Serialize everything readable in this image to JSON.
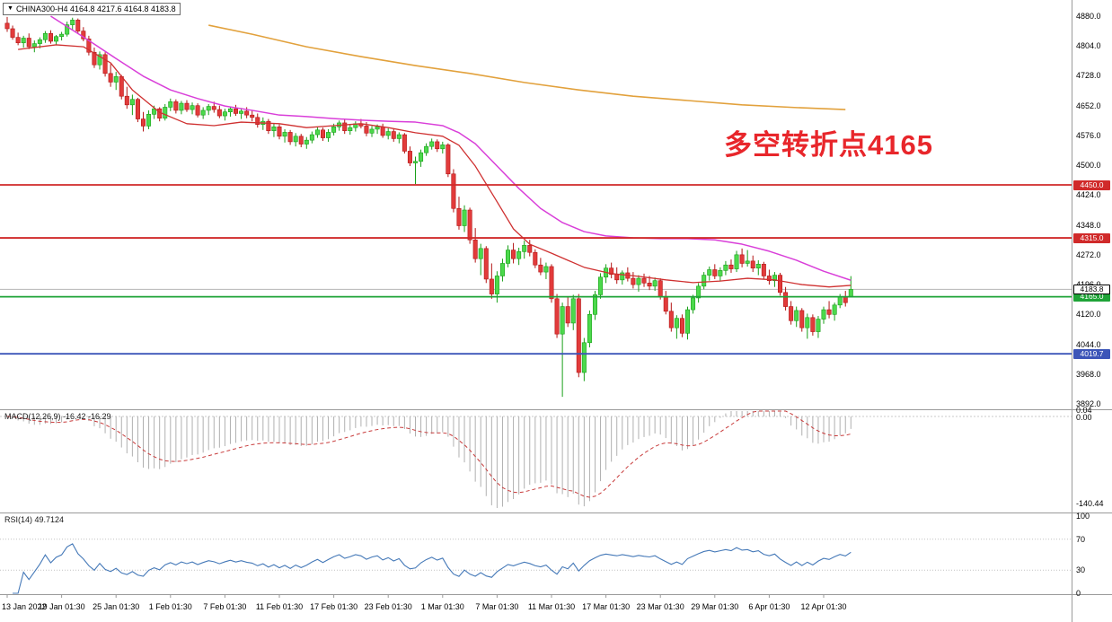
{
  "window": {
    "symbol_box": {
      "arrow": "▼",
      "symbol": "CHINA300",
      "timeframe": "H4",
      "open": "4164.8",
      "high": "4217.6",
      "low": "4164.8",
      "close": "4183.8",
      "text": "CHINA300-H4 4164.8 4217.6 4164.8 4183.8"
    },
    "annotation": {
      "text": "多空转折点4165",
      "color": "#e8262b"
    }
  },
  "chart_data": {
    "type": "candlestick",
    "symbol": "CHINA300",
    "timeframe": "H4",
    "title": "CHINA300-H4 4164.8 4217.6 4164.8 4183.8",
    "ylim": [
      3892.0,
      4880.0
    ],
    "grid": false,
    "price_axis_labels": [
      4880.0,
      4804.0,
      4728.0,
      4652.0,
      4576.0,
      4500.0,
      4424.0,
      4348.0,
      4272.0,
      4196.0,
      4120.0,
      4044.0,
      3968.0,
      3892.0
    ],
    "time_labels": [
      "13 Jan 2022",
      "19 Jan 01:30",
      "25 Jan 01:30",
      "1 Feb 01:30",
      "7 Feb 01:30",
      "11 Feb 01:30",
      "17 Feb 01:30",
      "23 Feb 01:30",
      "1 Mar 01:30",
      "7 Mar 01:30",
      "11 Mar 01:30",
      "17 Mar 01:30",
      "23 Mar 01:30",
      "29 Mar 01:30",
      "6 Apr 01:30",
      "12 Apr 01:30"
    ],
    "candles_per_label": 10,
    "candles": [
      [
        4862,
        4878,
        4840,
        4848
      ],
      [
        4848,
        4856,
        4820,
        4826
      ],
      [
        4826,
        4838,
        4806,
        4812
      ],
      [
        4812,
        4830,
        4800,
        4824
      ],
      [
        4824,
        4836,
        4796,
        4802
      ],
      [
        4802,
        4818,
        4788,
        4810
      ],
      [
        4810,
        4826,
        4798,
        4820
      ],
      [
        4820,
        4842,
        4812,
        4836
      ],
      [
        4836,
        4844,
        4810,
        4816
      ],
      [
        4816,
        4832,
        4806,
        4828
      ],
      [
        4828,
        4840,
        4818,
        4834
      ],
      [
        4834,
        4866,
        4828,
        4858
      ],
      [
        4858,
        4876,
        4846,
        4870
      ],
      [
        4870,
        4874,
        4836,
        4842
      ],
      [
        4842,
        4852,
        4816,
        4822
      ],
      [
        4822,
        4830,
        4780,
        4788
      ],
      [
        4788,
        4800,
        4748,
        4756
      ],
      [
        4756,
        4790,
        4744,
        4782
      ],
      [
        4782,
        4788,
        4726,
        4734
      ],
      [
        4734,
        4758,
        4700,
        4712
      ],
      [
        4712,
        4738,
        4692,
        4726
      ],
      [
        4726,
        4730,
        4668,
        4676
      ],
      [
        4676,
        4700,
        4644,
        4654
      ],
      [
        4654,
        4680,
        4628,
        4668
      ],
      [
        4668,
        4672,
        4610,
        4618
      ],
      [
        4618,
        4636,
        4586,
        4600
      ],
      [
        4600,
        4640,
        4592,
        4630
      ],
      [
        4630,
        4652,
        4618,
        4644
      ],
      [
        4644,
        4648,
        4612,
        4620
      ],
      [
        4620,
        4656,
        4614,
        4648
      ],
      [
        4648,
        4670,
        4638,
        4662
      ],
      [
        4662,
        4668,
        4632,
        4640
      ],
      [
        4640,
        4664,
        4630,
        4658
      ],
      [
        4658,
        4666,
        4636,
        4642
      ],
      [
        4642,
        4660,
        4630,
        4652
      ],
      [
        4652,
        4658,
        4622,
        4628
      ],
      [
        4628,
        4648,
        4618,
        4640
      ],
      [
        4640,
        4656,
        4628,
        4650
      ],
      [
        4650,
        4662,
        4634,
        4642
      ],
      [
        4642,
        4652,
        4620,
        4626
      ],
      [
        4626,
        4644,
        4614,
        4636
      ],
      [
        4636,
        4650,
        4624,
        4644
      ],
      [
        4644,
        4654,
        4626,
        4632
      ],
      [
        4632,
        4646,
        4618,
        4638
      ],
      [
        4638,
        4648,
        4620,
        4628
      ],
      [
        4628,
        4640,
        4612,
        4622
      ],
      [
        4622,
        4632,
        4596,
        4604
      ],
      [
        4604,
        4622,
        4590,
        4612
      ],
      [
        4612,
        4618,
        4580,
        4588
      ],
      [
        4588,
        4606,
        4572,
        4598
      ],
      [
        4598,
        4604,
        4566,
        4574
      ],
      [
        4574,
        4592,
        4558,
        4584
      ],
      [
        4584,
        4590,
        4552,
        4560
      ],
      [
        4560,
        4582,
        4548,
        4574
      ],
      [
        4574,
        4580,
        4546,
        4554
      ],
      [
        4554,
        4572,
        4542,
        4564
      ],
      [
        4564,
        4586,
        4556,
        4578
      ],
      [
        4578,
        4598,
        4570,
        4590
      ],
      [
        4590,
        4596,
        4562,
        4570
      ],
      [
        4570,
        4592,
        4560,
        4584
      ],
      [
        4584,
        4606,
        4576,
        4598
      ],
      [
        4598,
        4614,
        4588,
        4608
      ],
      [
        4608,
        4616,
        4580,
        4588
      ],
      [
        4588,
        4604,
        4578,
        4596
      ],
      [
        4596,
        4612,
        4586,
        4606
      ],
      [
        4606,
        4618,
        4594,
        4600
      ],
      [
        4600,
        4610,
        4574,
        4582
      ],
      [
        4582,
        4600,
        4572,
        4592
      ],
      [
        4592,
        4604,
        4580,
        4598
      ],
      [
        4598,
        4606,
        4570,
        4576
      ],
      [
        4576,
        4594,
        4566,
        4586
      ],
      [
        4586,
        4592,
        4560,
        4568
      ],
      [
        4568,
        4584,
        4556,
        4578
      ],
      [
        4578,
        4582,
        4530,
        4536
      ],
      [
        4536,
        4548,
        4498,
        4506
      ],
      [
        4506,
        4522,
        4452,
        4510
      ],
      [
        4510,
        4540,
        4496,
        4532
      ],
      [
        4532,
        4556,
        4524,
        4548
      ],
      [
        4548,
        4568,
        4540,
        4560
      ],
      [
        4560,
        4566,
        4534,
        4542
      ],
      [
        4542,
        4560,
        4530,
        4552
      ],
      [
        4552,
        4556,
        4470,
        4478
      ],
      [
        4478,
        4490,
        4380,
        4390
      ],
      [
        4390,
        4420,
        4336,
        4346
      ],
      [
        4346,
        4398,
        4330,
        4386
      ],
      [
        4386,
        4392,
        4300,
        4310
      ],
      [
        4310,
        4340,
        4252,
        4262
      ],
      [
        4262,
        4300,
        4220,
        4288
      ],
      [
        4288,
        4294,
        4200,
        4210
      ],
      [
        4210,
        4250,
        4160,
        4172
      ],
      [
        4172,
        4230,
        4150,
        4218
      ],
      [
        4218,
        4262,
        4204,
        4250
      ],
      [
        4250,
        4296,
        4240,
        4284
      ],
      [
        4284,
        4302,
        4250,
        4262
      ],
      [
        4262,
        4290,
        4246,
        4280
      ],
      [
        4280,
        4308,
        4262,
        4296
      ],
      [
        4296,
        4310,
        4268,
        4278
      ],
      [
        4278,
        4286,
        4238,
        4246
      ],
      [
        4246,
        4264,
        4220,
        4228
      ],
      [
        4228,
        4252,
        4210,
        4242
      ],
      [
        4242,
        4248,
        4150,
        4160
      ],
      [
        4160,
        4172,
        4060,
        4070
      ],
      [
        4070,
        4150,
        3910,
        4140
      ],
      [
        4140,
        4164,
        4088,
        4098
      ],
      [
        4098,
        4170,
        4080,
        4160
      ],
      [
        4160,
        4172,
        3960,
        3972
      ],
      [
        3972,
        4060,
        3950,
        4048
      ],
      [
        4048,
        4130,
        4036,
        4120
      ],
      [
        4120,
        4180,
        4106,
        4170
      ],
      [
        4170,
        4225,
        4160,
        4215
      ],
      [
        4215,
        4248,
        4200,
        4238
      ],
      [
        4238,
        4252,
        4212,
        4222
      ],
      [
        4222,
        4240,
        4198,
        4208
      ],
      [
        4208,
        4232,
        4196,
        4226
      ],
      [
        4226,
        4240,
        4204,
        4212
      ],
      [
        4212,
        4228,
        4186,
        4196
      ],
      [
        4196,
        4220,
        4178,
        4212
      ],
      [
        4212,
        4224,
        4190,
        4200
      ],
      [
        4200,
        4218,
        4182,
        4192
      ],
      [
        4192,
        4214,
        4180,
        4206
      ],
      [
        4206,
        4212,
        4158,
        4166
      ],
      [
        4166,
        4180,
        4120,
        4128
      ],
      [
        4128,
        4150,
        4076,
        4086
      ],
      [
        4086,
        4118,
        4058,
        4110
      ],
      [
        4110,
        4120,
        4062,
        4072
      ],
      [
        4072,
        4140,
        4056,
        4132
      ],
      [
        4132,
        4170,
        4122,
        4162
      ],
      [
        4162,
        4200,
        4150,
        4192
      ],
      [
        4192,
        4228,
        4184,
        4220
      ],
      [
        4220,
        4242,
        4206,
        4234
      ],
      [
        4234,
        4248,
        4210,
        4218
      ],
      [
        4218,
        4240,
        4204,
        4232
      ],
      [
        4232,
        4256,
        4220,
        4246
      ],
      [
        4246,
        4260,
        4226,
        4236
      ],
      [
        4236,
        4282,
        4228,
        4272
      ],
      [
        4272,
        4288,
        4240,
        4250
      ],
      [
        4250,
        4284,
        4242,
        4256
      ],
      [
        4256,
        4270,
        4228,
        4238
      ],
      [
        4238,
        4258,
        4220,
        4248
      ],
      [
        4248,
        4254,
        4210,
        4218
      ],
      [
        4218,
        4234,
        4196,
        4206
      ],
      [
        4206,
        4228,
        4190,
        4220
      ],
      [
        4220,
        4226,
        4168,
        4176
      ],
      [
        4176,
        4190,
        4130,
        4140
      ],
      [
        4140,
        4154,
        4094,
        4104
      ],
      [
        4104,
        4140,
        4088,
        4130
      ],
      [
        4130,
        4136,
        4076,
        4086
      ],
      [
        4086,
        4122,
        4058,
        4112
      ],
      [
        4112,
        4120,
        4066,
        4076
      ],
      [
        4076,
        4116,
        4060,
        4108
      ],
      [
        4108,
        4140,
        4096,
        4132
      ],
      [
        4132,
        4154,
        4110,
        4120
      ],
      [
        4120,
        4150,
        4104,
        4144
      ],
      [
        4144,
        4172,
        4136,
        4164
      ],
      [
        4164,
        4180,
        4140,
        4150
      ],
      [
        4164.8,
        4217.6,
        4164.8,
        4183.8
      ]
    ],
    "overlays": {
      "ma_fast_red": {
        "color": "#cf3030",
        "width": 1.3,
        "points": [
          [
            2,
            4795
          ],
          [
            9,
            4807
          ],
          [
            14,
            4802
          ],
          [
            19,
            4761
          ],
          [
            23,
            4692
          ],
          [
            28,
            4635
          ],
          [
            33,
            4606
          ],
          [
            38,
            4601
          ],
          [
            43,
            4610
          ],
          [
            50,
            4606
          ],
          [
            55,
            4596
          ],
          [
            60,
            4601
          ],
          [
            65,
            4606
          ],
          [
            70,
            4596
          ],
          [
            75,
            4583
          ],
          [
            80,
            4574
          ],
          [
            83,
            4551
          ],
          [
            86,
            4498
          ],
          [
            90,
            4407
          ],
          [
            93,
            4338
          ],
          [
            96,
            4299
          ],
          [
            100,
            4276
          ],
          [
            103,
            4258
          ],
          [
            106,
            4240
          ],
          [
            111,
            4224
          ],
          [
            116,
            4217
          ],
          [
            121,
            4208
          ],
          [
            126,
            4201
          ],
          [
            131,
            4205
          ],
          [
            136,
            4212
          ],
          [
            141,
            4208
          ],
          [
            146,
            4196
          ],
          [
            151,
            4190
          ],
          [
            155,
            4194
          ]
        ]
      },
      "ma_mid_magenta": {
        "color": "#d93fd9",
        "width": 1.5,
        "points": [
          [
            8,
            4880
          ],
          [
            15,
            4818
          ],
          [
            20,
            4772
          ],
          [
            25,
            4727
          ],
          [
            30,
            4692
          ],
          [
            35,
            4670
          ],
          [
            40,
            4651
          ],
          [
            45,
            4640
          ],
          [
            50,
            4628
          ],
          [
            55,
            4624
          ],
          [
            60,
            4619
          ],
          [
            65,
            4615
          ],
          [
            70,
            4612
          ],
          [
            75,
            4610
          ],
          [
            80,
            4601
          ],
          [
            83,
            4583
          ],
          [
            86,
            4555
          ],
          [
            90,
            4498
          ],
          [
            94,
            4441
          ],
          [
            98,
            4390
          ],
          [
            102,
            4354
          ],
          [
            106,
            4331
          ],
          [
            110,
            4320
          ],
          [
            115,
            4315
          ],
          [
            120,
            4313
          ],
          [
            125,
            4313
          ],
          [
            130,
            4310
          ],
          [
            135,
            4299
          ],
          [
            140,
            4281
          ],
          [
            145,
            4258
          ],
          [
            150,
            4230
          ],
          [
            155,
            4207
          ]
        ]
      },
      "ma_slow_orange": {
        "color": "#e2a13c",
        "width": 1.6,
        "points": [
          [
            37,
            4857
          ],
          [
            45,
            4834
          ],
          [
            55,
            4802
          ],
          [
            65,
            4777
          ],
          [
            75,
            4754
          ],
          [
            85,
            4734
          ],
          [
            95,
            4711
          ],
          [
            105,
            4692
          ],
          [
            115,
            4676
          ],
          [
            125,
            4665
          ],
          [
            135,
            4654
          ],
          [
            145,
            4647
          ],
          [
            154,
            4642
          ]
        ]
      }
    },
    "hlines": [
      {
        "value": 4450.0,
        "color": "#d02a2a",
        "label": "4450.0"
      },
      {
        "value": 4315.0,
        "color": "#d02a2a",
        "label": "4315.0"
      },
      {
        "value": 4165.0,
        "color": "#1ea337",
        "label": "4165.0"
      },
      {
        "value": 4019.7,
        "color": "#3c55b8",
        "label": "4019.7"
      }
    ],
    "current_price": {
      "value": 4183.8,
      "label": "4183.8"
    },
    "indicators": {
      "macd": {
        "label": "MACD(12,26,9) -16.42 -16.29",
        "params": [
          12,
          26,
          9
        ],
        "values_text": [
          "-16.42",
          "-16.29"
        ],
        "axis_labels": [
          "0.04",
          "0.00",
          "-140.44"
        ],
        "histogram_color": "#b0b0b0",
        "signal_color": "#c83b3b"
      },
      "rsi": {
        "label": "RSI(14) 49.7124",
        "period": 14,
        "value_text": "49.7124",
        "axis_labels": [
          100,
          70,
          30,
          0
        ],
        "levels": [
          70,
          30
        ],
        "line_color": "#4579b8"
      }
    },
    "colors": {
      "up_fill": "#4cd94c",
      "up_border": "#18a018",
      "down_fill": "#e23b3b",
      "down_border": "#b31414",
      "bg": "#ffffff",
      "axis_text": "#000000",
      "separator": "#9a9a9a",
      "bid_line": "#b5b5b5"
    }
  }
}
